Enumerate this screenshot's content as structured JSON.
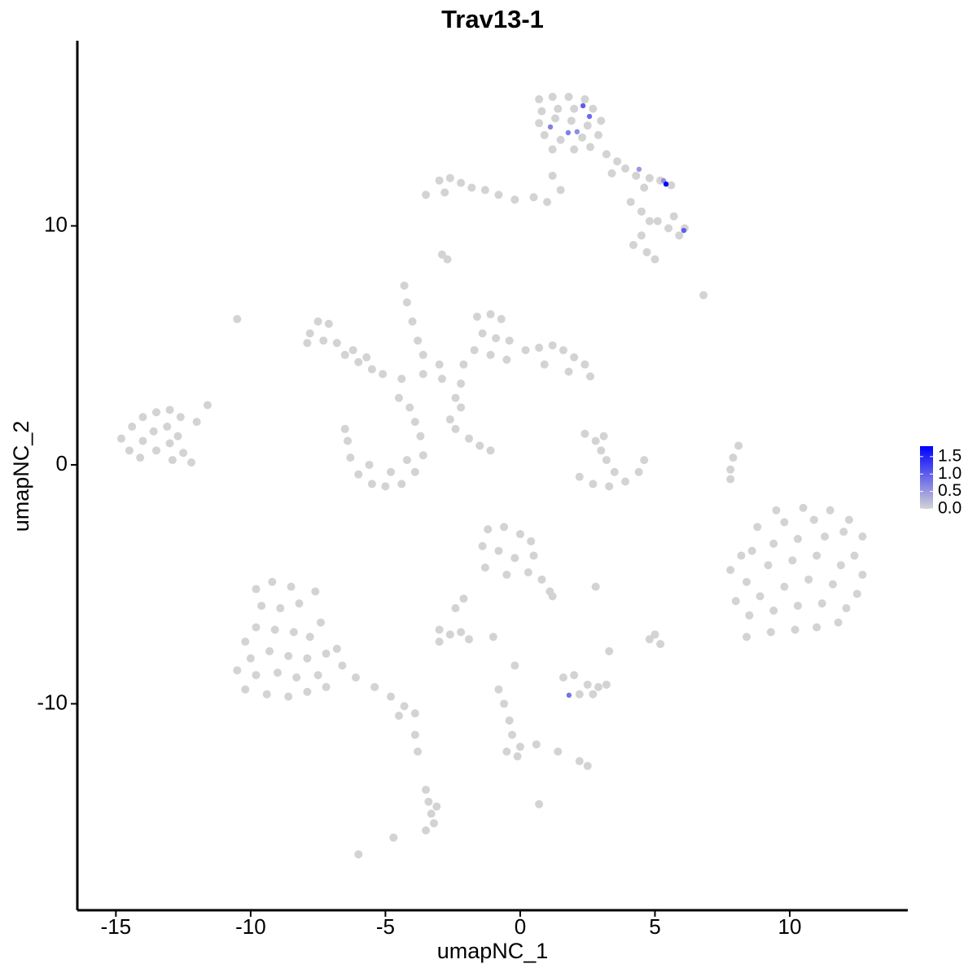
{
  "chart_data": {
    "type": "scatter",
    "title": "Trav13-1",
    "x_label": "umapNC_1",
    "y_label": "umapNC_2",
    "xlim": [
      -16.43,
      14.38
    ],
    "ylim": [
      -18.64,
      17.75
    ],
    "xticks": [
      -15,
      -10,
      -5,
      0,
      5,
      10
    ],
    "yticks": [
      -10,
      0,
      10
    ],
    "color_low": "#d3d3d3",
    "color_high": "#0000ff",
    "clim": [
      0,
      1.8
    ],
    "cticks": [
      {
        "value": 0,
        "label": "0.0"
      },
      0.5,
      {
        "value": 1,
        "label": "1.0"
      },
      1.5
    ],
    "x": [
      0.7,
      1.2,
      1.8,
      2.4,
      0.8,
      1.4,
      2.0,
      2.7,
      0.7,
      1.3,
      1.9,
      2.5,
      3.0,
      0.9,
      1.5,
      2.3,
      2.9,
      1.2,
      2.0,
      2.6,
      3.2,
      3.6,
      3.9,
      4.3,
      4.8,
      5.2,
      5.6,
      3.4,
      4.6,
      4.1,
      4.5,
      4.8,
      5.1,
      5.5,
      5.9,
      6.1,
      5.7,
      4.2,
      4.7,
      5.0,
      4.5,
      -3.5,
      -3.0,
      -2.6,
      -2.2,
      -2.8,
      -1.8,
      -1.3,
      -0.8,
      -0.2,
      0.5,
      1.0,
      1.5,
      1.2,
      -2.9,
      -2.7,
      -10.5,
      6.8,
      -6.0,
      -4.7,
      0.7,
      -14.8,
      -14.4,
      -14.0,
      -13.5,
      -13.0,
      -12.6,
      -14.5,
      -14.0,
      -13.6,
      -13.1,
      -12.7,
      -14.1,
      -13.5,
      -13.0,
      -12.5,
      -12.2,
      -12.9,
      -12.0,
      -11.6,
      -7.8,
      -7.5,
      -7.1,
      -7.3,
      -6.8,
      -6.5,
      -6.0,
      -5.5,
      -5.1,
      -7.9,
      -6.2,
      -5.7,
      -4.3,
      -4.2,
      -4.0,
      -3.8,
      -3.6,
      -4.4,
      -4.5,
      -3.0,
      -2.9,
      -3.6,
      -6.4,
      -6.3,
      -6.0,
      -5.5,
      -5.0,
      -4.4,
      -3.9,
      -3.6,
      -3.7,
      -3.9,
      -5.6,
      -4.8,
      -4.2,
      -6.5,
      -4.1,
      -2.4,
      -1.9,
      -1.5,
      -1.1,
      -2.6,
      -1.6,
      -1.1,
      -0.7,
      -1.4,
      -0.9,
      -0.4,
      -1.7,
      -1.1,
      -0.5,
      0.2,
      0.7,
      1.2,
      1.6,
      2.0,
      2.4,
      2.6,
      1.8,
      0.9,
      -2.1,
      -2.2,
      -2.4,
      -2.2,
      2.4,
      2.8,
      3.0,
      3.2,
      3.5,
      3.9,
      3.3,
      2.7,
      2.2,
      4.4,
      4.6,
      3.1,
      9.5,
      10.5,
      11.5,
      12.2,
      8.8,
      9.8,
      10.9,
      12.0,
      12.7,
      7.8,
      8.6,
      9.4,
      10.3,
      11.3,
      12.4,
      8.4,
      9.2,
      10.1,
      11.0,
      11.9,
      12.7,
      8.0,
      8.9,
      9.8,
      10.7,
      11.6,
      12.5,
      8.5,
      9.4,
      10.3,
      11.2,
      12.1,
      8.4,
      9.3,
      10.2,
      11.0,
      11.8,
      8.2,
      7.8,
      7.9,
      8.1,
      7.8,
      -1.2,
      -0.6,
      0.0,
      0.4,
      -1.4,
      -0.8,
      -0.2,
      0.5,
      -1.3,
      -0.5,
      0.3,
      0.8,
      1.1,
      1.2,
      2.8,
      -9.8,
      -9.2,
      -8.5,
      -9.6,
      -8.9,
      -8.2,
      -7.6,
      -9.8,
      -9.1,
      -8.4,
      -7.8,
      -10.2,
      -10.0,
      -9.3,
      -8.6,
      -7.9,
      -7.2,
      -10.5,
      -9.8,
      -9.0,
      -8.3,
      -7.5,
      -10.2,
      -9.4,
      -8.6,
      -7.9,
      -7.2,
      -6.6,
      -6.1,
      -5.4,
      -4.8,
      -4.3,
      -3.9,
      -4.5,
      -7.4,
      -6.8,
      -3.0,
      -2.6,
      -2.2,
      -1.9,
      -2.4,
      -2.1,
      -3.0,
      -1.0,
      -3.9,
      -3.8,
      1.6,
      2.0,
      2.5,
      2.9,
      3.2,
      2.2,
      2.7,
      4.8,
      5.2,
      3.3,
      5.0,
      -0.8,
      -0.6,
      -0.4,
      -0.3,
      0.0,
      -0.1,
      -0.5,
      0.6,
      1.4,
      2.2,
      2.5,
      -0.2,
      -3.5,
      -3.4,
      -3.3,
      -3.2,
      -3.5,
      -3.1,
      2.33,
      2.57,
      1.12,
      1.78,
      2.11,
      4.41,
      5.32,
      6.07,
      1.81,
      5.41
    ],
    "y": [
      15.3,
      15.4,
      15.4,
      15.3,
      14.8,
      14.9,
      14.9,
      14.9,
      14.3,
      14.5,
      14.4,
      14.2,
      14.4,
      13.8,
      13.6,
      13.7,
      13.8,
      13.2,
      13.2,
      13.3,
      13.0,
      12.7,
      12.4,
      12.1,
      12.0,
      11.9,
      11.7,
      12.2,
      11.6,
      11.0,
      10.6,
      10.2,
      10.2,
      9.9,
      9.6,
      9.9,
      10.4,
      9.2,
      8.9,
      8.6,
      9.6,
      11.3,
      11.9,
      12.0,
      11.8,
      11.4,
      11.6,
      11.5,
      11.3,
      11.1,
      11.2,
      11.0,
      11.5,
      12.1,
      8.8,
      8.6,
      6.1,
      7.1,
      -16.3,
      -15.6,
      -14.2,
      1.1,
      1.6,
      2.0,
      2.2,
      2.3,
      2.0,
      0.6,
      1.0,
      1.4,
      1.6,
      1.2,
      0.3,
      0.6,
      0.9,
      0.5,
      0.1,
      0.2,
      1.8,
      2.5,
      5.5,
      6.0,
      5.9,
      5.2,
      5.1,
      4.6,
      4.3,
      4.0,
      3.8,
      5.1,
      4.8,
      4.5,
      7.5,
      6.8,
      6.0,
      5.2,
      4.6,
      3.6,
      2.8,
      4.2,
      3.6,
      3.8,
      1.0,
      0.3,
      -0.4,
      -0.8,
      -0.9,
      -0.8,
      -0.3,
      0.4,
      1.2,
      1.8,
      0.0,
      -0.3,
      0.2,
      1.5,
      2.4,
      1.5,
      1.1,
      0.8,
      0.6,
      1.9,
      6.2,
      6.3,
      6.1,
      5.5,
      5.3,
      5.2,
      4.8,
      4.6,
      4.4,
      4.8,
      4.9,
      5.0,
      4.8,
      4.5,
      4.2,
      3.7,
      3.9,
      4.2,
      4.2,
      3.4,
      2.8,
      2.4,
      1.3,
      1.0,
      0.6,
      0.2,
      -0.3,
      -0.7,
      -0.9,
      -0.8,
      -0.5,
      -0.3,
      0.2,
      1.2,
      -1.9,
      -1.8,
      -1.9,
      -2.3,
      -2.6,
      -2.4,
      -2.3,
      -2.8,
      -3.0,
      -4.4,
      -3.6,
      -3.3,
      -3.1,
      -3.0,
      -3.8,
      -4.9,
      -4.2,
      -4.0,
      -3.8,
      -4.2,
      -4.6,
      -5.7,
      -5.5,
      -5.1,
      -4.8,
      -5.0,
      -5.4,
      -6.3,
      -6.1,
      -5.9,
      -5.8,
      -6.0,
      -7.2,
      -7.0,
      -6.9,
      -6.8,
      -6.6,
      -3.8,
      -0.2,
      0.3,
      0.8,
      -0.6,
      -2.7,
      -2.6,
      -2.9,
      -3.2,
      -3.4,
      -3.6,
      -3.9,
      -3.8,
      -4.3,
      -4.6,
      -4.5,
      -4.8,
      -5.3,
      -5.5,
      -5.1,
      -5.2,
      -4.9,
      -5.1,
      -5.9,
      -6.0,
      -5.8,
      -5.3,
      -6.8,
      -6.9,
      -7.0,
      -7.2,
      -7.4,
      -8.1,
      -7.8,
      -8.0,
      -8.1,
      -7.9,
      -8.6,
      -8.8,
      -8.7,
      -8.9,
      -8.8,
      -9.4,
      -9.6,
      -9.7,
      -9.5,
      -9.3,
      -8.4,
      -8.9,
      -9.3,
      -9.7,
      -10.1,
      -10.4,
      -10.5,
      -6.6,
      -7.7,
      -6.9,
      -7.1,
      -7.0,
      -7.3,
      -6.0,
      -5.6,
      -7.4,
      -7.2,
      -11.3,
      -12.0,
      -8.9,
      -8.8,
      -9.2,
      -9.3,
      -9.2,
      -9.6,
      -9.6,
      -7.3,
      -7.5,
      -7.8,
      -7.1,
      -9.4,
      -10.0,
      -10.7,
      -11.3,
      -11.8,
      -12.2,
      -12.0,
      -11.7,
      -12.0,
      -12.4,
      -12.6,
      -8.4,
      -13.6,
      -14.1,
      -14.6,
      -15.0,
      -15.3,
      -14.3,
      15.03,
      14.58,
      14.14,
      13.9,
      13.94,
      12.37,
      11.89,
      9.81,
      -9.64,
      11.75
    ],
    "values": [
      0,
      0,
      0,
      0,
      0,
      0,
      0,
      0,
      0,
      0,
      0,
      0,
      0,
      0,
      0,
      0,
      0,
      0,
      0,
      0,
      0,
      0,
      0,
      0,
      0,
      0,
      0,
      0,
      0,
      0,
      0,
      0,
      0,
      0,
      0,
      0,
      0,
      0,
      0,
      0,
      0,
      0,
      0,
      0,
      0,
      0,
      0,
      0,
      0,
      0,
      0,
      0,
      0,
      0,
      0,
      0,
      0,
      0,
      0,
      0,
      0,
      0,
      0,
      0,
      0,
      0,
      0,
      0,
      0,
      0,
      0,
      0,
      0,
      0,
      0,
      0,
      0,
      0,
      0,
      0,
      0,
      0,
      0,
      0,
      0,
      0,
      0,
      0,
      0,
      0,
      0,
      0,
      0,
      0,
      0,
      0,
      0,
      0,
      0,
      0,
      0,
      0,
      0,
      0,
      0,
      0,
      0,
      0,
      0,
      0,
      0,
      0,
      0,
      0,
      0,
      0,
      0,
      0,
      0,
      0,
      0,
      0,
      0,
      0,
      0,
      0,
      0,
      0,
      0,
      0,
      0,
      0,
      0,
      0,
      0,
      0,
      0,
      0,
      0,
      0,
      0,
      0,
      0,
      0,
      0,
      0,
      0,
      0,
      0,
      0,
      0,
      0,
      0,
      0,
      0,
      0,
      0,
      0,
      0,
      0,
      0,
      0,
      0,
      0,
      0,
      0,
      0,
      0,
      0,
      0,
      0,
      0,
      0,
      0,
      0,
      0,
      0,
      0,
      0,
      0,
      0,
      0,
      0,
      0,
      0,
      0,
      0,
      0,
      0,
      0,
      0,
      0,
      0,
      0,
      0,
      0,
      0,
      0,
      0,
      0,
      0,
      0,
      0,
      0,
      0,
      0,
      0,
      0,
      0,
      0,
      0,
      0,
      0,
      0,
      0,
      0,
      0,
      0,
      0,
      0,
      0,
      0,
      0,
      0,
      0,
      0,
      0,
      0,
      0,
      0,
      0,
      0,
      0,
      0,
      0,
      0,
      0,
      0,
      0,
      0,
      0,
      0,
      0,
      0,
      0,
      0,
      0,
      0,
      0,
      0,
      0,
      0,
      0,
      0,
      0,
      0,
      0,
      0,
      0,
      0,
      0,
      0,
      0,
      0,
      0,
      0,
      0,
      0,
      0,
      0,
      0,
      0,
      0,
      0,
      0,
      0,
      0,
      0,
      0,
      0,
      0,
      0,
      0,
      0,
      0,
      0,
      0,
      0,
      1.0,
      0.9,
      0.7,
      0.7,
      0.6,
      0.5,
      0.6,
      1.0,
      0.8,
      1.75
    ]
  }
}
